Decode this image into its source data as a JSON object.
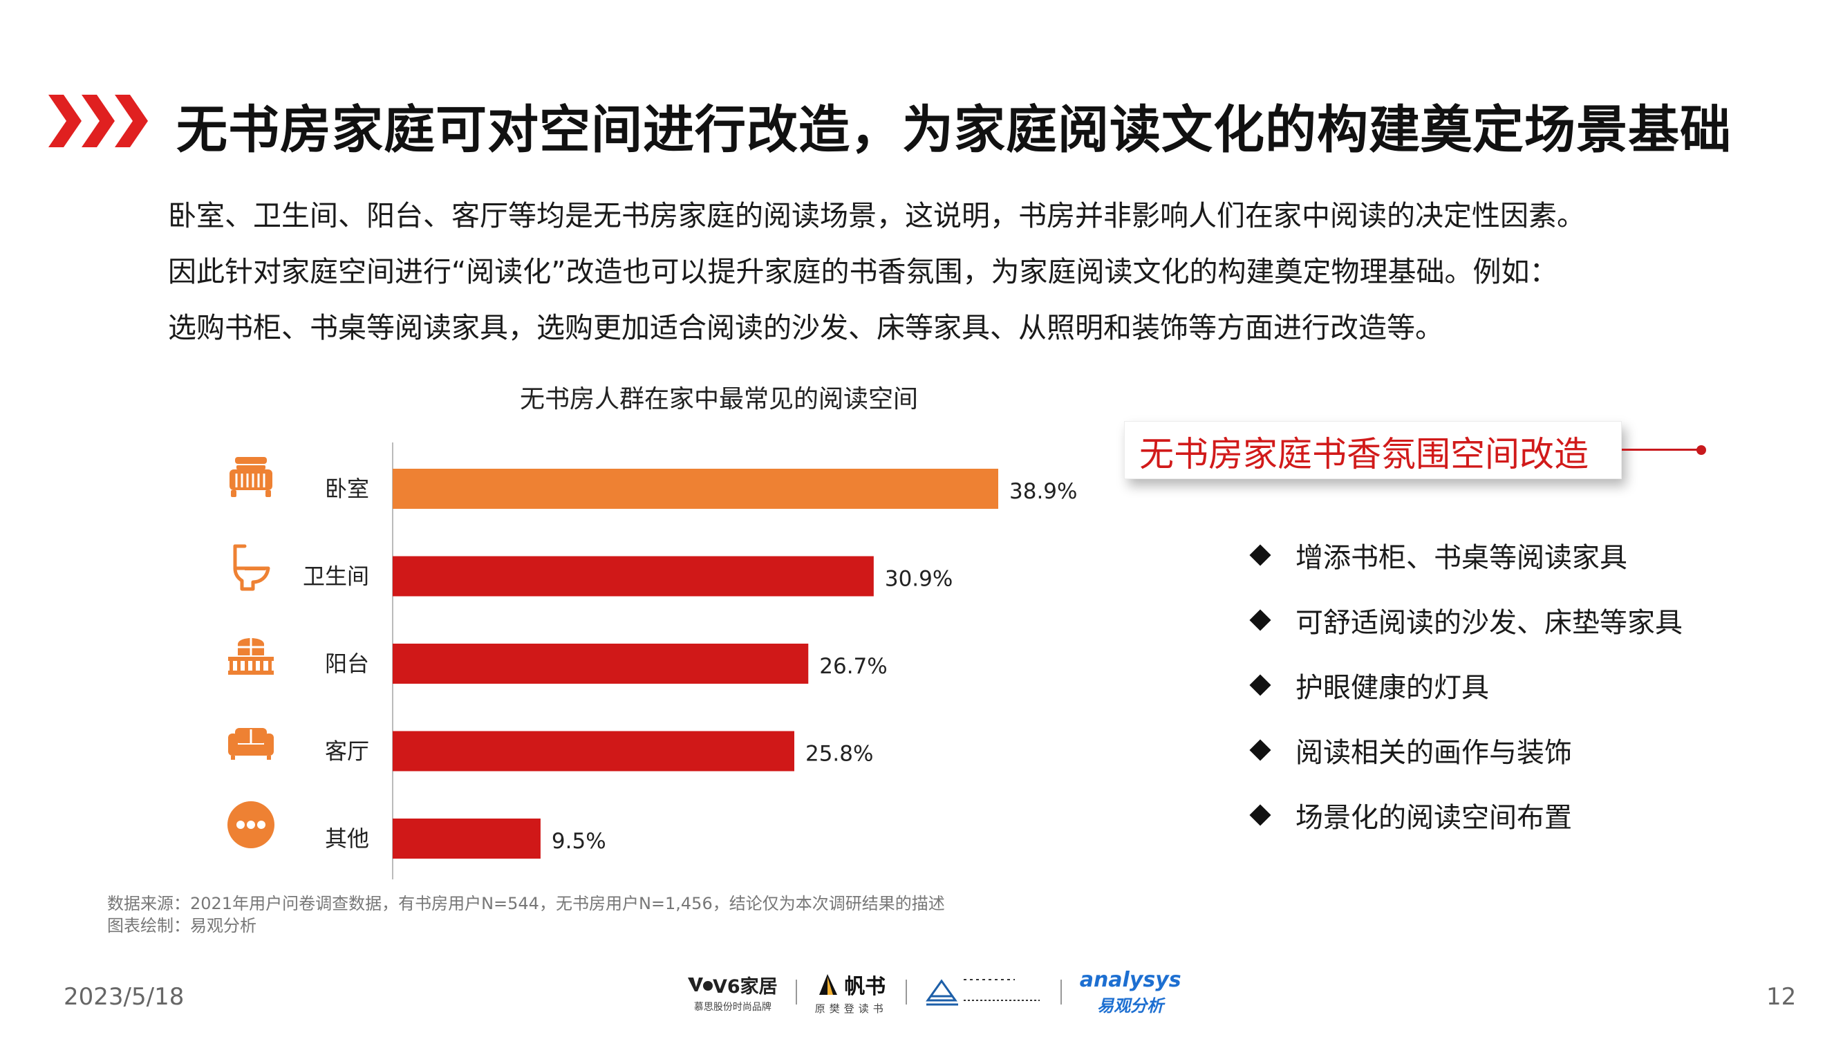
{
  "header": {
    "title": "无书房家庭可对空间进行改造，为家庭阅读文化的构建奠定场景基础",
    "accent_color": "#e02020"
  },
  "intro": {
    "lines": [
      "卧室、卫生间、阳台、客厅等均是无书房家庭的阅读场景，这说明，书房并非影响人们在家中阅读的决定性因素。",
      "因此针对家庭空间进行“阅读化”改造也可以提升家庭的书香氛围，为家庭阅读文化的构建奠定物理基础。例如：",
      "选购书柜、书桌等阅读家具，选购更加适合阅读的沙发、床等家具、从照明和装饰等方面进行改造等。"
    ]
  },
  "chart_data": {
    "type": "bar",
    "orientation": "horizontal",
    "title": "无书房人群在家中最常见的阅读空间",
    "categories": [
      "卧室",
      "卫生间",
      "阳台",
      "客厅",
      "其他"
    ],
    "values": [
      38.9,
      30.9,
      26.7,
      25.8,
      9.5
    ],
    "value_labels": [
      "38.9%",
      "30.9%",
      "26.7%",
      "25.8%",
      "9.5%"
    ],
    "unit": "%",
    "bar_colors": [
      "#ee8133",
      "#d01818",
      "#d01818",
      "#d01818",
      "#d01818"
    ],
    "icons": [
      "bed-icon",
      "toilet-icon",
      "balcony-icon",
      "sofa-icon",
      "more-icon"
    ],
    "icon_color": "#ee8133",
    "xlim": [
      0,
      38.9
    ],
    "grid": false,
    "legend": "none"
  },
  "callout": {
    "title": "无书房家庭书香氛围空间改造",
    "color": "#d11a1a",
    "items": [
      "增添书柜、书桌等阅读家具",
      "可舒适阅读的沙发、床垫等家具",
      "护眼健康的灯具",
      "阅读相关的画作与装饰",
      "场景化的阅读空间布置"
    ]
  },
  "source": {
    "line1": "数据来源：2021年用户问卷调查数据，有书房用户N=544，无书房用户N=1,456，结论仅为本次调研结果的描述",
    "line2": "图表绘制：易观分析"
  },
  "footer": {
    "date": "2023/5/18",
    "page": "12",
    "logos": {
      "v6_main": "V6家居",
      "v6_sub": "慕思股份时尚品牌",
      "fs_main": "帆书",
      "fs_sub": "原樊登读书",
      "an_main": "analysys",
      "an_sub": "易观分析"
    }
  }
}
